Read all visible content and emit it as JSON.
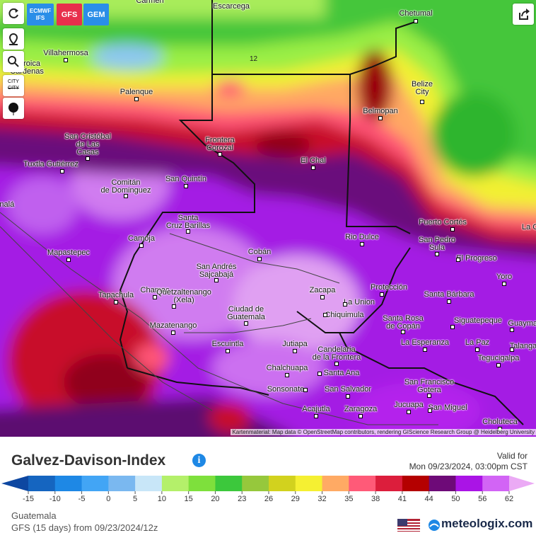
{
  "toolbar": {
    "models": [
      [
        "ECMWF",
        "IFS"
      ],
      "GFS",
      "GEM"
    ],
    "city_button": [
      "CITY",
      "CITY"
    ]
  },
  "map": {
    "contour_label": "12",
    "attribution": "Kartenmaterial: Map data © OpenStreetMap contributors, rendering GIScience Research Group @ Heidelberg University",
    "labels": [
      [
        "Carmen"
      ],
      [
        "Escarcega"
      ],
      [
        "Chetumal"
      ],
      [
        "Villahermosa"
      ],
      [
        "Heroica",
        "Cárdenas"
      ],
      [
        "Palenque"
      ],
      [
        "Belize",
        "City"
      ],
      [
        "Belmopan"
      ],
      [
        "San Cristóbal",
        "de Las",
        "Casas"
      ],
      [
        "Frontera",
        "Corozal"
      ],
      [
        "El Chal"
      ],
      [
        "Tuxtla Gutiérrez"
      ],
      [
        "Comitán",
        "de Dominguez"
      ],
      [
        "San Quintín"
      ],
      [
        "Tonalá"
      ],
      [
        "Santa",
        "Cruz Barillas"
      ],
      [
        "Camoja"
      ],
      [
        "Rio Dulce"
      ],
      [
        "Puerto Cortés"
      ],
      [
        "San Pedro",
        "Sula"
      ],
      [
        "La Ceiba"
      ],
      [
        "El Progreso"
      ],
      [
        "Mapastepec"
      ],
      [
        "Cobán"
      ],
      [
        "San Andrés",
        "Sajcabajá"
      ],
      [
        "Yoro"
      ],
      [
        "Tapachula"
      ],
      [
        "Chamac"
      ],
      [
        "Quetzaltenango",
        "(Xela)"
      ],
      [
        "Zacapa"
      ],
      [
        "Protección"
      ],
      [
        "Santa Bárbara"
      ],
      [
        "La Union"
      ],
      [
        "Ciudad de",
        "Guatemala"
      ],
      [
        "Chiquimula"
      ],
      [
        "Santa Rosa",
        "de Copán"
      ],
      [
        "Siguatepeque"
      ],
      [
        "Guaymaca"
      ],
      [
        "Mazatenango"
      ],
      [
        "Escuintla"
      ],
      [
        "Jutiapa"
      ],
      [
        "Candelaria",
        "de la Frontera"
      ],
      [
        "La Esperanza"
      ],
      [
        "La Paz"
      ],
      [
        "Talanga"
      ],
      [
        "Tegucigalpa"
      ],
      [
        "Chalchuapa"
      ],
      [
        "Santa Ana"
      ],
      [
        "Sonsonate"
      ],
      [
        "San Salvador"
      ],
      [
        "San Francisco",
        "Gotera"
      ],
      [
        "Jucuapa"
      ],
      [
        "San Miguel"
      ],
      [
        "Acajutla"
      ],
      [
        "Zaragoza"
      ],
      [
        "Choluteca"
      ]
    ]
  },
  "title": "Galvez-Davison-Index",
  "valid": {
    "label": "Valid for",
    "time": "Mon 09/23/2024, 03:00pm CST"
  },
  "legend": {
    "stops": [
      -15,
      -10,
      -5,
      0,
      5,
      10,
      15,
      20,
      23,
      26,
      29,
      32,
      35,
      38,
      41,
      44,
      50,
      56,
      62
    ],
    "colors": [
      "#0d47a1",
      "#1565c0",
      "#1e88e5",
      "#42a5f5",
      "#7ab8f0",
      "#c8e6f8",
      "#b4f06a",
      "#7ee03c",
      "#3cc83c",
      "#96c83c",
      "#d2d21e",
      "#f5f032",
      "#ffaa64",
      "#ff5a78",
      "#dc1e3c",
      "#b40000",
      "#6e0a78",
      "#aa14e6",
      "#d264f5",
      "#ebaaf5"
    ]
  },
  "footer": {
    "region": "Guatemala",
    "run": "GFS (15 days) from 09/23/2024/12z",
    "brand": "meteologix.com"
  }
}
